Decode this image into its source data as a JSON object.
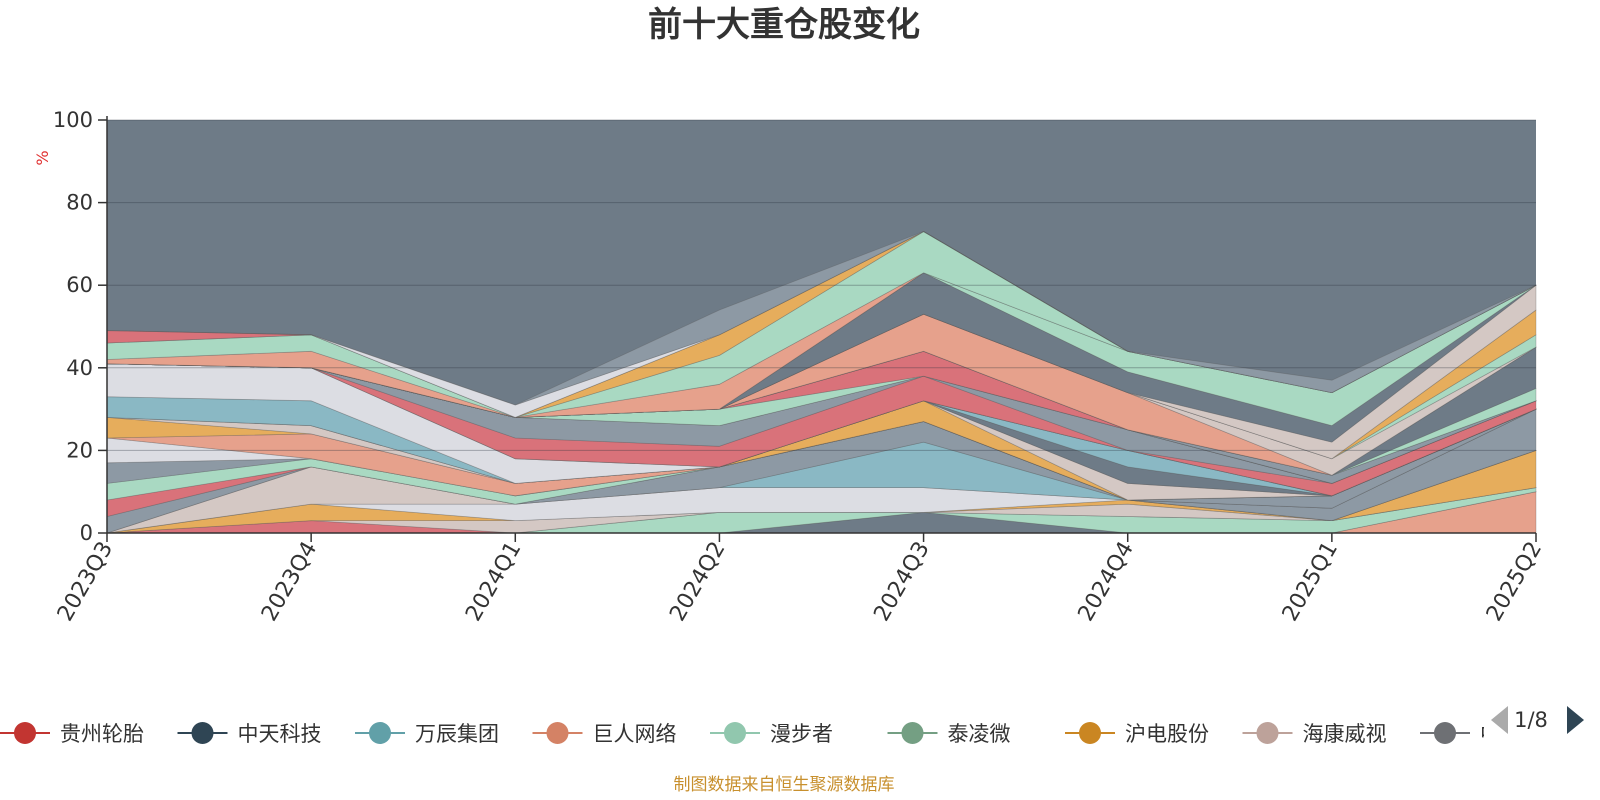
{
  "chart_data": {
    "type": "area",
    "title": "前十大重仓股变化",
    "ylabel": "%",
    "ylim": [
      0,
      100
    ],
    "yticks": [
      0,
      20,
      40,
      60,
      80,
      100
    ],
    "categories": [
      "2023Q3",
      "2023Q4",
      "2024Q1",
      "2024Q2",
      "2024Q3",
      "2024Q4",
      "2025Q1",
      "2025Q2"
    ],
    "background_color": "#6e7b87",
    "series": [
      {
        "color": "#e6a18c",
        "values": [
          0,
          0,
          0,
          0,
          0,
          0,
          0,
          10
        ]
      },
      {
        "color": "#6e7b87",
        "values": [
          0,
          0,
          0,
          0,
          5,
          0,
          0,
          0
        ]
      },
      {
        "color": "#a9d9c2",
        "values": [
          0,
          0,
          0,
          5,
          0,
          4,
          3,
          1
        ]
      },
      {
        "color": "#d9727a",
        "values": [
          0,
          3,
          0,
          0,
          0,
          0,
          0,
          0
        ]
      },
      {
        "color": "#d4c8c4",
        "values": [
          0,
          0,
          3,
          0,
          0,
          3,
          0,
          0
        ]
      },
      {
        "color": "#e6ad5c",
        "values": [
          0,
          4,
          0,
          0,
          0,
          1,
          0,
          9
        ]
      },
      {
        "color": "#dcdde3",
        "values": [
          0,
          0,
          4,
          6,
          6,
          0,
          0,
          0
        ]
      },
      {
        "color": "#d4c8c4",
        "values": [
          0,
          9,
          0,
          0,
          0,
          0,
          0,
          0
        ]
      },
      {
        "color": "#8ab8c4",
        "values": [
          0,
          0,
          0,
          0,
          11,
          0,
          0,
          0
        ]
      },
      {
        "color": "#8d99a4",
        "values": [
          4,
          0,
          0,
          5,
          5,
          0,
          3,
          10
        ]
      },
      {
        "color": "#d9727a",
        "values": [
          4,
          0,
          0,
          0,
          0,
          0,
          0,
          0
        ]
      },
      {
        "color": "#a9d9c2",
        "values": [
          4,
          2,
          2,
          0,
          0,
          0,
          0,
          0
        ]
      },
      {
        "color": "#8d99a4",
        "values": [
          5,
          0,
          0,
          0,
          0,
          0,
          3,
          0
        ]
      },
      {
        "color": "#dcdde3",
        "values": [
          6,
          0,
          0,
          0,
          0,
          0,
          0,
          0
        ]
      },
      {
        "color": "#e6a18c",
        "values": [
          0,
          6,
          3,
          0,
          0,
          0,
          0,
          0
        ]
      },
      {
        "color": "#e6ad5c",
        "values": [
          5,
          0,
          0,
          0,
          5,
          0,
          0,
          0
        ]
      },
      {
        "color": "#d4c8c4",
        "values": [
          0,
          2,
          0,
          0,
          0,
          4,
          0,
          0
        ]
      },
      {
        "color": "#8ab8c4",
        "values": [
          0,
          0,
          0,
          0,
          0,
          0,
          0,
          0
        ]
      },
      {
        "color": "#6e7b87",
        "values": [
          0,
          0,
          0,
          0,
          0,
          4,
          0,
          0
        ]
      },
      {
        "color": "#8ab8c4",
        "values": [
          5,
          6,
          0,
          0,
          0,
          4,
          0,
          0
        ]
      },
      {
        "color": "#dcdde3",
        "values": [
          8,
          8,
          6,
          0,
          0,
          0,
          0,
          0
        ]
      },
      {
        "color": "#e6a18c",
        "values": [
          0,
          0,
          0,
          0,
          0,
          0,
          0,
          0
        ]
      },
      {
        "color": "#8d99a4",
        "values": [
          0,
          0,
          0,
          0,
          0,
          0,
          0,
          0
        ]
      },
      {
        "color": "#d9727a",
        "values": [
          0,
          0,
          5,
          5,
          6,
          0,
          3,
          2
        ]
      },
      {
        "color": "#8d99a4",
        "values": [
          0,
          0,
          5,
          5,
          0,
          5,
          0,
          0
        ]
      },
      {
        "color": "#8ab8c4",
        "values": [
          0,
          0,
          0,
          0,
          0,
          0,
          0,
          0
        ]
      },
      {
        "color": "#a9d9c2",
        "values": [
          0,
          0,
          0,
          4,
          0,
          0,
          0,
          0
        ]
      },
      {
        "color": "#d9727a",
        "values": [
          0,
          0,
          0,
          0,
          6,
          0,
          0,
          0
        ]
      },
      {
        "color": "#8d99a4",
        "values": [
          0,
          0,
          0,
          0,
          0,
          0,
          2,
          0
        ]
      },
      {
        "color": "#dcdde3",
        "values": [
          0,
          0,
          0,
          0,
          0,
          0,
          0,
          0
        ]
      },
      {
        "color": "#a9d9c2",
        "values": [
          0,
          0,
          0,
          0,
          0,
          0,
          0,
          3
        ]
      },
      {
        "color": "#6e7b87",
        "values": [
          0,
          0,
          0,
          0,
          0,
          0,
          0,
          10
        ]
      },
      {
        "color": "#e6a18c",
        "values": [
          0,
          0,
          0,
          0,
          9,
          9,
          0,
          0
        ]
      },
      {
        "color": "#d4c8c4",
        "values": [
          0,
          0,
          0,
          0,
          0,
          0,
          4,
          0
        ]
      },
      {
        "color": "#a9d9c2",
        "values": [
          0,
          0,
          0,
          0,
          0,
          0,
          0,
          3
        ]
      },
      {
        "color": "#e6ad5c",
        "values": [
          0,
          0,
          0,
          0,
          0,
          0,
          0,
          6
        ]
      },
      {
        "color": "#d4c8c4",
        "values": [
          0,
          0,
          0,
          0,
          0,
          0,
          4,
          6
        ]
      },
      {
        "color": "#6e7b87",
        "values": [
          0,
          0,
          0,
          0,
          10,
          5,
          4,
          0
        ]
      },
      {
        "color": "#a9d9c2",
        "values": [
          0,
          0,
          0,
          0,
          0,
          5,
          8,
          0
        ]
      },
      {
        "color": "#e6a18c",
        "values": [
          1,
          4,
          0,
          6,
          0,
          0,
          0,
          0
        ]
      },
      {
        "color": "#a9d9c2",
        "values": [
          4,
          4,
          0,
          7,
          10,
          0,
          0,
          0
        ]
      },
      {
        "color": "#e6ad5c",
        "values": [
          0,
          0,
          0,
          5,
          0,
          0,
          0,
          0
        ]
      },
      {
        "color": "#d9727a",
        "values": [
          3,
          0,
          0,
          0,
          0,
          0,
          0,
          0
        ]
      },
      {
        "color": "#dcdde3",
        "values": [
          0,
          0,
          3,
          0,
          0,
          0,
          0,
          0
        ]
      },
      {
        "color": "#8d99a4",
        "values": [
          0,
          0,
          0,
          6,
          0,
          0,
          3,
          0
        ]
      }
    ],
    "legend": {
      "items": [
        {
          "label": "贵州轮胎",
          "color": "#c23531"
        },
        {
          "label": "中天科技",
          "color": "#2f4554"
        },
        {
          "label": "万辰集团",
          "color": "#61a0a8"
        },
        {
          "label": "巨人网络",
          "color": "#d48265"
        },
        {
          "label": "漫步者",
          "color": "#91c7ae"
        },
        {
          "label": "泰凌微",
          "color": "#749f83"
        },
        {
          "label": "沪电股份",
          "color": "#ca8622"
        },
        {
          "label": "海康威视",
          "color": "#bda29a"
        },
        {
          "label": "中际旭创",
          "color": "#6e7074"
        }
      ],
      "page": "1/8",
      "placement": "bottom"
    },
    "source": "制图数据来自恒生聚源数据库"
  }
}
